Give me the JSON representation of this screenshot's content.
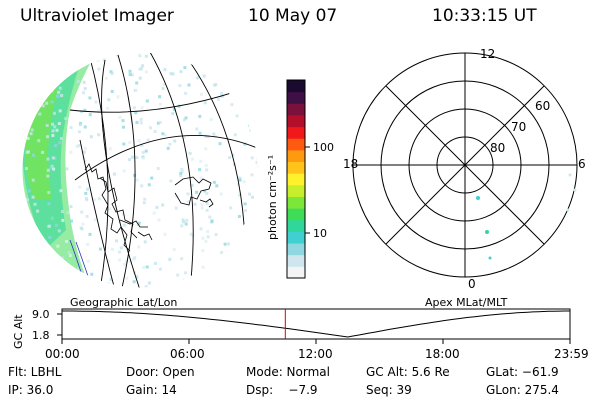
{
  "header": {
    "title": "Ultraviolet Imager",
    "date": "10 May 07",
    "time": "10:33:15 UT"
  },
  "colorbar": {
    "unit_label": "photon cm⁻²s⁻¹",
    "ticks": [
      {
        "label": "100",
        "value": 100
      },
      {
        "label": "10",
        "value": 10
      }
    ],
    "colors": [
      "#f4f4f4",
      "#cfe6ee",
      "#8fd8e0",
      "#3fd0cf",
      "#2fd79a",
      "#3fdd55",
      "#7de63a",
      "#c7ee2a",
      "#fff22c",
      "#ffc31a",
      "#ff9a10",
      "#ff5a10",
      "#f0181a",
      "#b40f2a",
      "#7a103c",
      "#3e1045",
      "#1a0a30"
    ]
  },
  "polar_plot": {
    "mlt_labels": {
      "top": "12",
      "left": "18",
      "right": "6",
      "bottom": "0"
    },
    "mlat_labels": [
      "60",
      "70",
      "80"
    ]
  },
  "captions": {
    "geographic": "Geographic Lat/Lon",
    "apex": "Apex MLat/MLT"
  },
  "altitude_plot": {
    "axis_title": "GC Alt",
    "ticks": [
      "9.0",
      "1.8"
    ],
    "time_ticks": [
      "00:00",
      "06:00",
      "12:00",
      "18:00",
      "23:59"
    ],
    "current_time_hours": 10.55,
    "line_color": "#dd0000"
  },
  "footer": {
    "row1": {
      "flt": "Flt: LBHL",
      "door": "Door: Open",
      "mode": "Mode: Normal",
      "gcalt": "GC Alt: 5.6 Re",
      "glat": "GLat: −61.9"
    },
    "row2": {
      "ip": "IP: 36.0",
      "gain": "Gain: 14",
      "dsp": "Dsp:    −7.9",
      "seq": "Seq: 39",
      "glon": "GLon: 275.4"
    }
  }
}
